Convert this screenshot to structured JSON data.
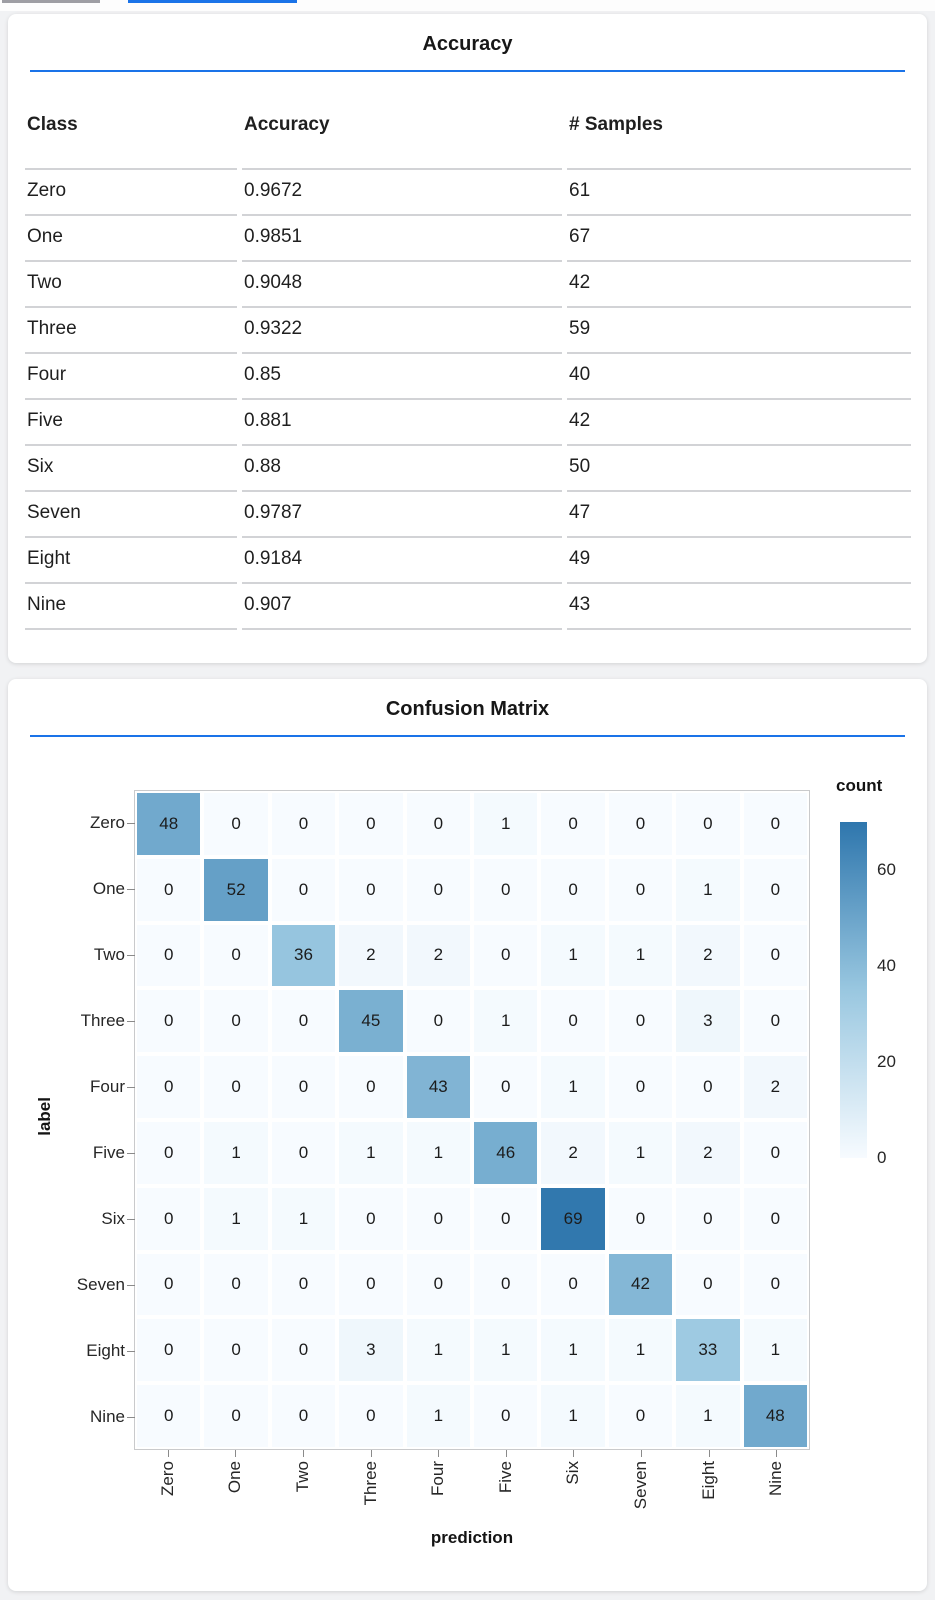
{
  "colors": {
    "accent": "#1a73e8",
    "inactive_tab": "#9e9ea4",
    "page_bg": "#f1f2f4",
    "card_bg": "#ffffff"
  },
  "accuracy_card": {
    "title": "Accuracy",
    "table": {
      "columns": [
        "Class",
        "Accuracy",
        "# Samples"
      ],
      "rows": [
        [
          "Zero",
          "0.9672",
          "61"
        ],
        [
          "One",
          "0.9851",
          "67"
        ],
        [
          "Two",
          "0.9048",
          "42"
        ],
        [
          "Three",
          "0.9322",
          "59"
        ],
        [
          "Four",
          "0.85",
          "40"
        ],
        [
          "Five",
          "0.881",
          "42"
        ],
        [
          "Six",
          "0.88",
          "50"
        ],
        [
          "Seven",
          "0.9787",
          "47"
        ],
        [
          "Eight",
          "0.9184",
          "49"
        ],
        [
          "Nine",
          "0.907",
          "43"
        ]
      ]
    }
  },
  "confusion_card": {
    "title": "Confusion Matrix"
  },
  "chart_data": {
    "type": "heatmap",
    "title": "Confusion Matrix",
    "xlabel": "prediction",
    "ylabel": "label",
    "categories": [
      "Zero",
      "One",
      "Two",
      "Three",
      "Four",
      "Five",
      "Six",
      "Seven",
      "Eight",
      "Nine"
    ],
    "matrix": [
      [
        48,
        0,
        0,
        0,
        0,
        1,
        0,
        0,
        0,
        0
      ],
      [
        0,
        52,
        0,
        0,
        0,
        0,
        0,
        0,
        1,
        0
      ],
      [
        0,
        0,
        36,
        2,
        2,
        0,
        1,
        1,
        2,
        0
      ],
      [
        0,
        0,
        0,
        45,
        0,
        1,
        0,
        0,
        3,
        0
      ],
      [
        0,
        0,
        0,
        0,
        43,
        0,
        1,
        0,
        0,
        2
      ],
      [
        0,
        1,
        0,
        1,
        1,
        46,
        2,
        1,
        2,
        0
      ],
      [
        0,
        1,
        1,
        0,
        0,
        0,
        69,
        0,
        0,
        0
      ],
      [
        0,
        0,
        0,
        0,
        0,
        0,
        0,
        42,
        0,
        0
      ],
      [
        0,
        0,
        0,
        3,
        1,
        1,
        1,
        1,
        33,
        1
      ],
      [
        0,
        0,
        0,
        0,
        1,
        0,
        1,
        0,
        1,
        48
      ]
    ],
    "legend": {
      "title": "count",
      "domain": [
        0,
        70
      ],
      "ticks": [
        60,
        40,
        20,
        0
      ]
    },
    "colors": {
      "low": "#f7fbff",
      "mid": "#99c7e0",
      "high": "#2e76ad"
    }
  }
}
